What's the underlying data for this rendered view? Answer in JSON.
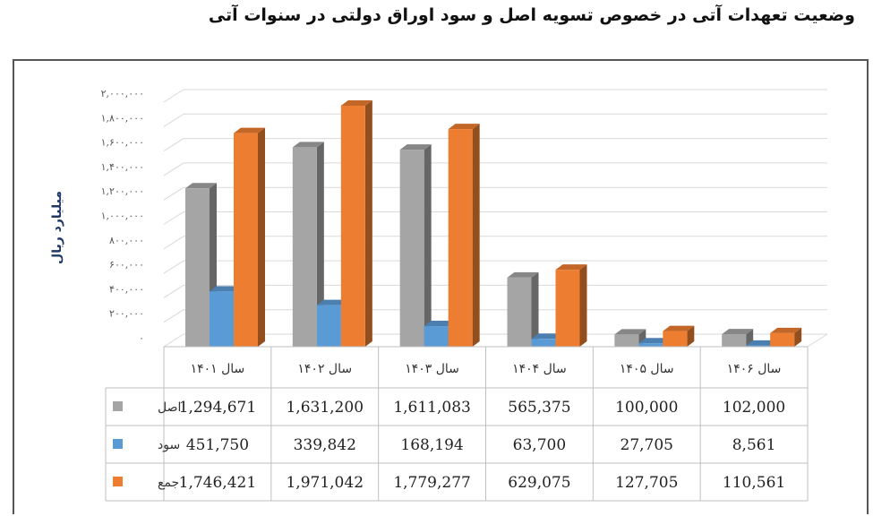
{
  "page": {
    "title": "وضعیت تعهدات آتی در خصوص تسویه اصل و سود اوراق دولتی در سنوات آتی"
  },
  "chart_data": {
    "type": "bar",
    "ylabel": "میلیارد ریال",
    "ylim": [
      0,
      2000000
    ],
    "yticks": [
      "۰",
      "۲۰۰,۰۰۰",
      "۴۰۰,۰۰۰",
      "۶۰۰,۰۰۰",
      "۸۰۰,۰۰۰",
      "۱,۰۰۰,۰۰۰",
      "۱,۲۰۰,۰۰۰",
      "۱,۴۰۰,۰۰۰",
      "۱,۶۰۰,۰۰۰",
      "۱,۸۰۰,۰۰۰",
      "۲,۰۰۰,۰۰۰"
    ],
    "ytick_values": [
      0,
      200000,
      400000,
      600000,
      800000,
      1000000,
      1200000,
      1400000,
      1600000,
      1800000,
      2000000
    ],
    "categories": [
      "سال ۱۴۰۱",
      "سال ۱۴۰۲",
      "سال ۱۴۰۳",
      "سال ۱۴۰۴",
      "سال ۱۴۰۵",
      "سال ۱۴۰۶"
    ],
    "series": [
      {
        "name": "اصل",
        "color": "#a5a5a5",
        "values": [
          1294671,
          1631200,
          1611083,
          565375,
          100000,
          102000
        ],
        "labels": [
          "1,294,671",
          "1,631,200",
          "1,611,083",
          "565,375",
          "100,000",
          "102,000"
        ]
      },
      {
        "name": "سود",
        "color": "#5b9bd5",
        "values": [
          451750,
          339842,
          168194,
          63700,
          27705,
          8561
        ],
        "labels": [
          "451,750",
          "339,842",
          "168,194",
          "63,700",
          "27,705",
          "8,561"
        ]
      },
      {
        "name": "جمع",
        "color": "#ed7d31",
        "values": [
          1746421,
          1971042,
          1779277,
          629075,
          127705,
          110561
        ],
        "labels": [
          "1,746,421",
          "1,971,042",
          "1,779,277",
          "629,075",
          "127,705",
          "110,561"
        ]
      }
    ],
    "grid": true,
    "legend": "data-table"
  }
}
